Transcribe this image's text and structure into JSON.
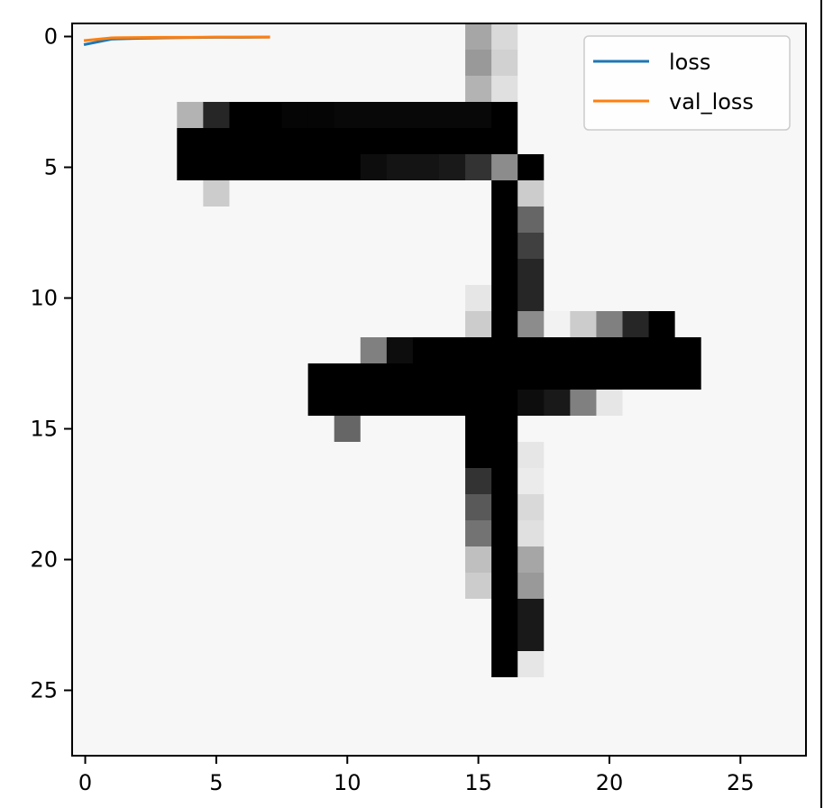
{
  "chart_data": [
    {
      "type": "heatmap",
      "description_of_role": "",
      "xlim": [
        -0.5,
        27.5
      ],
      "ylim": [
        27.5,
        -0.5
      ],
      "x_ticks": [
        0,
        5,
        10,
        15,
        20,
        25
      ],
      "y_ticks": [
        0,
        5,
        10,
        15,
        20,
        25
      ],
      "x_tick_labels": [
        "0",
        "5",
        "10",
        "15",
        "20",
        "25"
      ],
      "y_tick_labels": [
        "0",
        "5",
        "10",
        "15",
        "20",
        "25"
      ],
      "colormap": "gray_r",
      "grid": false,
      "rows": 28,
      "cols": 28,
      "background_level": 0.03,
      "cells": [
        [
          0,
          15,
          0.35
        ],
        [
          0,
          16,
          0.15
        ],
        [
          1,
          15,
          0.4
        ],
        [
          1,
          16,
          0.18
        ],
        [
          2,
          15,
          0.3
        ],
        [
          2,
          16,
          0.12
        ],
        [
          3,
          4,
          0.3
        ],
        [
          3,
          5,
          0.85
        ],
        [
          3,
          6,
          1.0
        ],
        [
          3,
          7,
          1.0
        ],
        [
          3,
          8,
          0.98
        ],
        [
          3,
          9,
          0.98
        ],
        [
          3,
          10,
          0.97
        ],
        [
          3,
          11,
          0.97
        ],
        [
          3,
          12,
          0.97
        ],
        [
          3,
          13,
          0.97
        ],
        [
          3,
          14,
          0.97
        ],
        [
          3,
          15,
          0.97
        ],
        [
          3,
          16,
          1.0
        ],
        [
          4,
          4,
          1.0
        ],
        [
          4,
          5,
          1.0
        ],
        [
          4,
          6,
          1.0
        ],
        [
          4,
          7,
          1.0
        ],
        [
          4,
          8,
          1.0
        ],
        [
          4,
          9,
          1.0
        ],
        [
          4,
          10,
          1.0
        ],
        [
          4,
          11,
          1.0
        ],
        [
          4,
          12,
          1.0
        ],
        [
          4,
          13,
          1.0
        ],
        [
          4,
          14,
          1.0
        ],
        [
          4,
          15,
          1.0
        ],
        [
          4,
          16,
          1.0
        ],
        [
          5,
          4,
          1.0
        ],
        [
          5,
          5,
          1.0
        ],
        [
          5,
          6,
          1.0
        ],
        [
          5,
          7,
          1.0
        ],
        [
          5,
          8,
          1.0
        ],
        [
          5,
          9,
          1.0
        ],
        [
          5,
          10,
          1.0
        ],
        [
          5,
          11,
          0.95
        ],
        [
          5,
          12,
          0.92
        ],
        [
          5,
          13,
          0.92
        ],
        [
          5,
          14,
          0.9
        ],
        [
          5,
          15,
          0.8
        ],
        [
          5,
          16,
          0.45
        ],
        [
          5,
          17,
          1.0
        ],
        [
          6,
          5,
          0.2
        ],
        [
          6,
          16,
          1.0
        ],
        [
          6,
          17,
          0.2
        ],
        [
          7,
          16,
          1.0
        ],
        [
          7,
          17,
          0.6
        ],
        [
          8,
          16,
          1.0
        ],
        [
          8,
          17,
          0.75
        ],
        [
          9,
          16,
          1.0
        ],
        [
          9,
          17,
          0.85
        ],
        [
          10,
          15,
          0.1
        ],
        [
          10,
          16,
          1.0
        ],
        [
          10,
          17,
          0.85
        ],
        [
          11,
          15,
          0.2
        ],
        [
          11,
          16,
          1.0
        ],
        [
          11,
          17,
          0.45
        ],
        [
          11,
          18,
          0.05
        ],
        [
          11,
          19,
          0.2
        ],
        [
          11,
          20,
          0.5
        ],
        [
          11,
          21,
          0.85
        ],
        [
          11,
          22,
          1.0
        ],
        [
          12,
          11,
          0.5
        ],
        [
          12,
          12,
          0.95
        ],
        [
          12,
          13,
          1.0
        ],
        [
          12,
          14,
          1.0
        ],
        [
          12,
          15,
          1.0
        ],
        [
          12,
          16,
          1.0
        ],
        [
          12,
          17,
          1.0
        ],
        [
          12,
          18,
          1.0
        ],
        [
          12,
          19,
          1.0
        ],
        [
          12,
          20,
          1.0
        ],
        [
          12,
          21,
          1.0
        ],
        [
          12,
          22,
          1.0
        ],
        [
          12,
          23,
          1.0
        ],
        [
          13,
          9,
          1.0
        ],
        [
          13,
          10,
          1.0
        ],
        [
          13,
          11,
          1.0
        ],
        [
          13,
          12,
          1.0
        ],
        [
          13,
          13,
          1.0
        ],
        [
          13,
          14,
          1.0
        ],
        [
          13,
          15,
          1.0
        ],
        [
          13,
          16,
          1.0
        ],
        [
          13,
          17,
          1.0
        ],
        [
          13,
          18,
          1.0
        ],
        [
          13,
          19,
          1.0
        ],
        [
          13,
          20,
          1.0
        ],
        [
          13,
          21,
          1.0
        ],
        [
          13,
          22,
          1.0
        ],
        [
          13,
          23,
          1.0
        ],
        [
          14,
          9,
          1.0
        ],
        [
          14,
          10,
          1.0
        ],
        [
          14,
          11,
          1.0
        ],
        [
          14,
          12,
          1.0
        ],
        [
          14,
          13,
          1.0
        ],
        [
          14,
          14,
          1.0
        ],
        [
          14,
          15,
          1.0
        ],
        [
          14,
          16,
          1.0
        ],
        [
          14,
          17,
          0.95
        ],
        [
          14,
          18,
          0.9
        ],
        [
          14,
          19,
          0.5
        ],
        [
          14,
          20,
          0.1
        ],
        [
          15,
          10,
          0.6
        ],
        [
          15,
          15,
          1.0
        ],
        [
          15,
          16,
          1.0
        ],
        [
          16,
          15,
          1.0
        ],
        [
          16,
          16,
          1.0
        ],
        [
          16,
          17,
          0.1
        ],
        [
          17,
          15,
          0.8
        ],
        [
          17,
          16,
          1.0
        ],
        [
          17,
          17,
          0.08
        ],
        [
          18,
          15,
          0.65
        ],
        [
          18,
          16,
          1.0
        ],
        [
          18,
          17,
          0.15
        ],
        [
          19,
          15,
          0.55
        ],
        [
          19,
          16,
          1.0
        ],
        [
          19,
          17,
          0.12
        ],
        [
          20,
          15,
          0.25
        ],
        [
          20,
          16,
          1.0
        ],
        [
          20,
          17,
          0.35
        ],
        [
          21,
          15,
          0.2
        ],
        [
          21,
          16,
          1.0
        ],
        [
          21,
          17,
          0.4
        ],
        [
          22,
          16,
          1.0
        ],
        [
          22,
          17,
          0.9
        ],
        [
          23,
          16,
          1.0
        ],
        [
          23,
          17,
          0.9
        ],
        [
          24,
          16,
          1.0
        ],
        [
          24,
          17,
          0.1
        ]
      ]
    },
    {
      "type": "line",
      "xlim": [
        -0.5,
        27.5
      ],
      "ylim": [
        27.5,
        -0.5
      ],
      "x": [
        0,
        1,
        2,
        3,
        4,
        5,
        6,
        7
      ],
      "legend_position": "top-right",
      "series": [
        {
          "name": "loss",
          "color": "#1f77b4",
          "values": [
            0.3,
            0.1,
            0.07,
            0.05,
            0.04,
            0.03,
            0.03,
            0.02
          ]
        },
        {
          "name": "val_loss",
          "color": "#ff7f0e",
          "values": [
            0.15,
            0.05,
            0.04,
            0.03,
            0.03,
            0.02,
            0.02,
            0.02
          ]
        }
      ]
    }
  ]
}
